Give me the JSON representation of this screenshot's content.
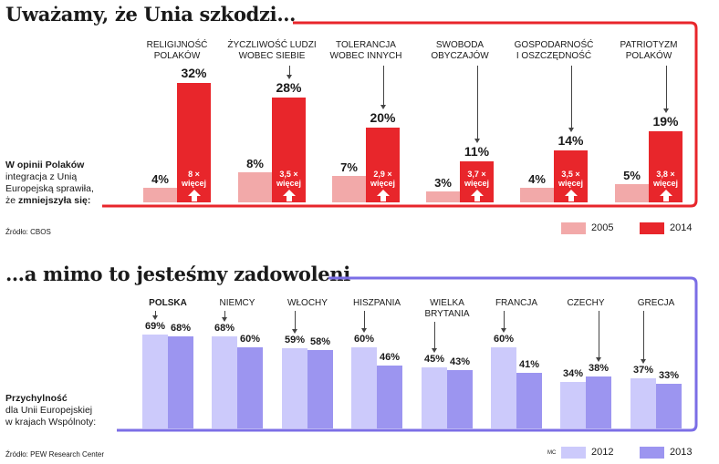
{
  "top": {
    "title": "Uważamy, że Unia szkodzi…",
    "desc": {
      "bold1": "W opinii Polaków",
      "line2": "integracja z Unią",
      "line3": "Europejską sprawiła,",
      "line4_pre": "że ",
      "line4_bold": "zmniejszyła się:"
    },
    "source": "Źródło: CBOS",
    "colors": {
      "y2005": "#f2a9a9",
      "y2014": "#e8262b",
      "frame": "#e8262b"
    }
  },
  "bottom": {
    "title": "…a mimo to jesteśmy zadowoleni",
    "desc": {
      "bold1": "Przychylność",
      "line2": "dla Unii Europejskiej",
      "line3": "w krajach Wspólnoty:"
    },
    "source": "Źródło: PEW Research Center",
    "author": "MC",
    "colors": {
      "y2012": "#cccafb",
      "y2013": "#9c95f0",
      "frame": "#7b6ee6"
    }
  },
  "chart_data": [
    {
      "type": "bar",
      "title": "Uważamy, że Unia szkodzi…",
      "categories": [
        [
          "RELIGIJNOŚĆ",
          "POLAKÓW"
        ],
        [
          "ŻYCZLIWOŚĆ LUDZI",
          "WOBEC SIEBIE"
        ],
        [
          "TOLERANCJA",
          "WOBEC INNYCH"
        ],
        [
          "SWOBODA",
          "OBYCZAJÓW"
        ],
        [
          "GOSPODARNOŚĆ",
          "I OSZCZĘDNOŚĆ"
        ],
        [
          "PATRIOTYZM",
          "POLAKÓW"
        ]
      ],
      "series": [
        {
          "name": "2005",
          "values": [
            4,
            8,
            7,
            3,
            4,
            5
          ],
          "labels": [
            "4%",
            "8%",
            "7%",
            "3%",
            "4%",
            "5%"
          ]
        },
        {
          "name": "2014",
          "values": [
            32,
            28,
            20,
            11,
            14,
            19
          ],
          "labels": [
            "32%",
            "28%",
            "20%",
            "11%",
            "14%",
            "19%"
          ]
        }
      ],
      "multipliers": [
        [
          "8 ×",
          "więcej"
        ],
        [
          "3,5 ×",
          "więcej"
        ],
        [
          "2,9 ×",
          "więcej"
        ],
        [
          "3,7 ×",
          "więcej"
        ],
        [
          "3,5 ×",
          "więcej"
        ],
        [
          "3,8 ×",
          "więcej"
        ]
      ],
      "legend": [
        "2005",
        "2014"
      ]
    },
    {
      "type": "bar",
      "title": "…a mimo to jesteśmy zadowoleni",
      "categories": [
        [
          "POLSKA"
        ],
        [
          "NIEMCY"
        ],
        [
          "WŁOCHY"
        ],
        [
          "HISZPANIA"
        ],
        [
          "WIELKA",
          "BRYTANIA"
        ],
        [
          "FRANCJA"
        ],
        [
          "CZECHY"
        ],
        [
          "GRECJA"
        ]
      ],
      "series": [
        {
          "name": "2012",
          "values": [
            69,
            68,
            59,
            60,
            45,
            60,
            34,
            37
          ],
          "labels": [
            "69%",
            "68%",
            "59%",
            "60%",
            "45%",
            "60%",
            "34%",
            "37%"
          ]
        },
        {
          "name": "2013",
          "values": [
            68,
            60,
            58,
            46,
            43,
            41,
            38,
            33
          ],
          "labels": [
            "68%",
            "60%",
            "58%",
            "46%",
            "43%",
            "41%",
            "38%",
            "33%"
          ]
        }
      ],
      "legend": [
        "2012",
        "2013"
      ]
    }
  ]
}
